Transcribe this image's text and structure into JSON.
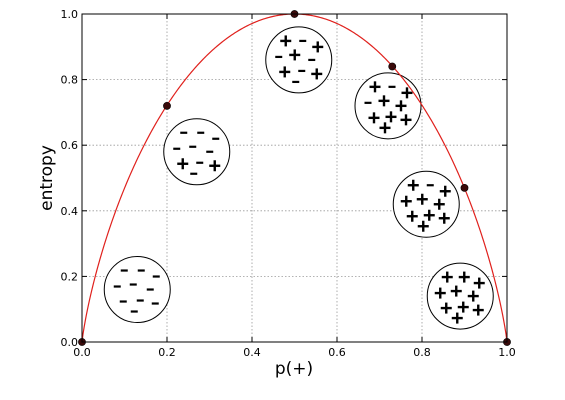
{
  "chart_data": {
    "type": "line",
    "xlabel": "p(+)",
    "ylabel": "entropy",
    "xlim": [
      0.0,
      1.0
    ],
    "ylim": [
      0.0,
      1.0
    ],
    "xticks": [
      "0.0",
      "0.2",
      "0.4",
      "0.6",
      "0.8",
      "1.0"
    ],
    "yticks": [
      "0.0",
      "0.2",
      "0.4",
      "0.6",
      "0.8",
      "1.0"
    ],
    "grid": true,
    "curve_color": "#e0211d",
    "marker_color": "#3a0a0a",
    "series": [
      {
        "x": [
          0.0,
          0.2,
          0.5,
          0.73,
          0.9,
          1.0
        ],
        "y": [
          0.0,
          0.72,
          1.0,
          0.84,
          0.47,
          0.0
        ]
      }
    ],
    "sample_groups": [
      {
        "cx": 0.13,
        "cy": 0.16,
        "plus": 0,
        "minus": 10
      },
      {
        "cx": 0.27,
        "cy": 0.58,
        "plus": 2,
        "minus": 8
      },
      {
        "cx": 0.51,
        "cy": 0.86,
        "plus": 5,
        "minus": 5
      },
      {
        "cx": 0.72,
        "cy": 0.72,
        "plus": 8,
        "minus": 2
      },
      {
        "cx": 0.81,
        "cy": 0.42,
        "plus": 9,
        "minus": 1
      },
      {
        "cx": 0.89,
        "cy": 0.14,
        "plus": 10,
        "minus": 0
      }
    ]
  }
}
